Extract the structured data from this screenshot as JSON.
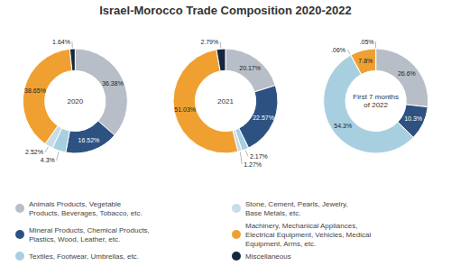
{
  "chart_data": {
    "type": "donut",
    "title": "Israel-Morocco Trade Composition 2020-2022",
    "categories": [
      "Animals Products, Vegetable\nProducts, Beverages, Tobacco, etc.",
      "Mineral Products, Chemical Products,\nPlastics, Wood, Leather, etc.",
      "Textiles, Footwear, Umbrellas, etc.",
      "Stone, Cement, Pearls, Jewelry,\nBase Metals, etc.",
      "Machinery, Mechanical Appliances,\nElectrical Equipment, Vehicles, Medical\nEquipment, Arms, etc.",
      "Miscellaneous"
    ],
    "colors": [
      "#b8bec7",
      "#2d5282",
      "#a8cfe0",
      "#c8dce8",
      "#f0a030",
      "#162840"
    ],
    "series": [
      {
        "name": "2020",
        "values": [
          36.38,
          16.52,
          4.3,
          2.52,
          38.65,
          1.64
        ],
        "value_labels": [
          "36.38%",
          "16.52%",
          "4.3%",
          "2.52%",
          "38.65%",
          "1.64%"
        ]
      },
      {
        "name": "2021",
        "values": [
          20.17,
          22.57,
          2.17,
          1.27,
          51.03,
          2.79
        ],
        "value_labels": [
          "20.17%",
          "22.57%",
          "2.17%",
          "1.27%",
          "51.03%",
          "2.79%"
        ]
      },
      {
        "name": "First 7 months\nof 2022",
        "values": [
          26.6,
          10.3,
          54.3,
          0.06,
          7.8,
          0.05
        ],
        "value_labels": [
          "26.6%",
          "10.3%",
          "54.3%",
          ".06%",
          "7.8%",
          ".05%"
        ]
      }
    ],
    "data_labels": true,
    "legend": "bottom"
  }
}
